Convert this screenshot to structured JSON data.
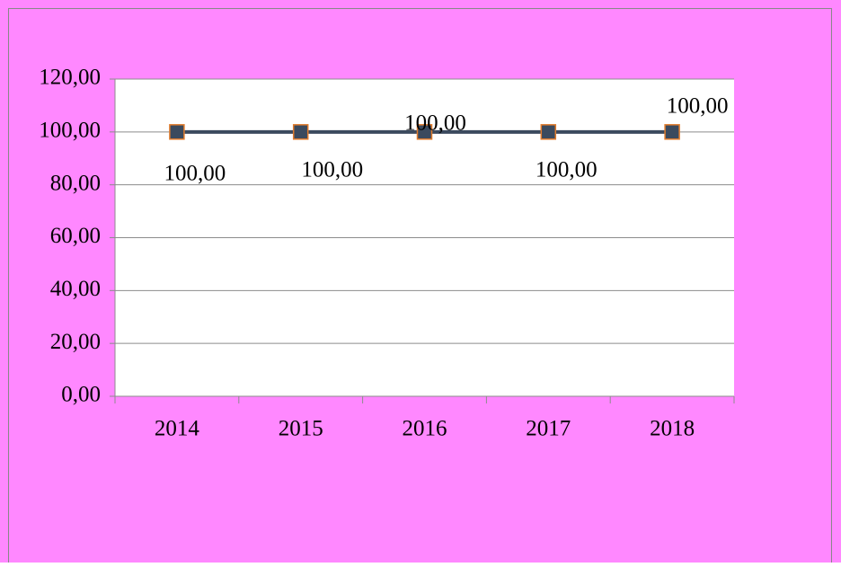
{
  "chart_data": {
    "type": "line",
    "categories": [
      "2014",
      "2015",
      "2016",
      "2017",
      "2018"
    ],
    "series": [
      {
        "color": "#3b4a5e",
        "marker_edge": "#e07b2c",
        "values": [
          100,
          100,
          100,
          100,
          100
        ],
        "value_labels": [
          "100,00",
          "100,00",
          "100,00",
          "100,00",
          "100,00"
        ]
      }
    ],
    "ylim": [
      0,
      120
    ],
    "yticks": [
      {
        "value": 0,
        "label": "0,00"
      },
      {
        "value": 20,
        "label": "20,00"
      },
      {
        "value": 40,
        "label": "40,00"
      },
      {
        "value": 60,
        "label": "60,00"
      },
      {
        "value": 80,
        "label": "80,00"
      },
      {
        "value": 100,
        "label": "100,00"
      },
      {
        "value": 120,
        "label": "120,00"
      }
    ],
    "grid": true
  }
}
